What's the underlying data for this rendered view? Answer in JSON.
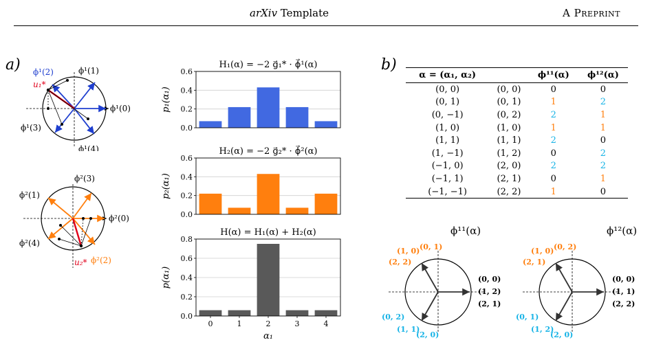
{
  "header": {
    "title_italic": "arXiv",
    "title_rest": " Template",
    "right": "A Preprint"
  },
  "panel_a_label": "a)",
  "panel_b_label": "b)",
  "colors": {
    "blue": "#4169e1",
    "blue_vec": "#1f3fcf",
    "orange": "#ff7f0e",
    "gray": "#595959",
    "red": "#e0001a",
    "cyan": "#17b3e6"
  },
  "circle1": {
    "labels": {
      "phi2": "ϕ¹(2)",
      "phi1": "ϕ¹(1)",
      "phi0": "ϕ¹(0)",
      "phi3": "ϕ¹(3)",
      "phi4": "ϕ¹(4)",
      "u": "u₁*"
    }
  },
  "circle2": {
    "labels": {
      "phi3": "ϕ²(3)",
      "phi1": "ϕ²(1)",
      "phi0": "ϕ²(0)",
      "phi4": "ϕ²(4)",
      "phi2": "ϕ²(2)",
      "u": "u₂*"
    }
  },
  "chart_data": [
    {
      "type": "bar",
      "title": "H₁(α) = −2 g⃗₁* · ϕ⃗¹(α)",
      "ylabel": "p₁(α₁)",
      "xlabel": "",
      "categories": [
        "0",
        "1",
        "2",
        "3",
        "4"
      ],
      "values": [
        0.07,
        0.22,
        0.43,
        0.22,
        0.07
      ],
      "ylim": [
        0,
        0.6
      ],
      "yticks": [
        "0.0",
        "0.2",
        "0.4",
        "0.6"
      ],
      "grid": true,
      "color": "#4169e1"
    },
    {
      "type": "bar",
      "title": "H₂(α) = −2 g⃗₂* · ϕ⃗²(α)",
      "ylabel": "p₂(α₁)",
      "xlabel": "",
      "categories": [
        "0",
        "1",
        "2",
        "3",
        "4"
      ],
      "values": [
        0.22,
        0.07,
        0.43,
        0.07,
        0.22
      ],
      "ylim": [
        0,
        0.6
      ],
      "yticks": [
        "0.0",
        "0.2",
        "0.4",
        "0.6"
      ],
      "grid": true,
      "color": "#ff7f0e"
    },
    {
      "type": "bar",
      "title": "H(α) = H₁(α) + H₂(α)",
      "ylabel": "p(α₁)",
      "xlabel": "α₁",
      "categories": [
        "0",
        "1",
        "2",
        "3",
        "4"
      ],
      "values": [
        0.06,
        0.06,
        0.75,
        0.06,
        0.06
      ],
      "ylim": [
        0,
        0.8
      ],
      "yticks": [
        "0.0",
        "0.2",
        "0.4",
        "0.6",
        "0.8"
      ],
      "grid": true,
      "color": "#595959"
    }
  ],
  "table": {
    "headers": [
      "α = (α₁, α₂)",
      "",
      "ϕ¹¹(α)",
      "ϕ¹²(α)"
    ],
    "rows": [
      [
        "(0, 0)",
        "(0, 0)",
        "0",
        "0"
      ],
      [
        "(0, 1)",
        "(0, 1)",
        "1",
        "2"
      ],
      [
        "(0, −1)",
        "(0, 2)",
        "2",
        "1"
      ],
      [
        "(1, 0)",
        "(1, 0)",
        "1",
        "1"
      ],
      [
        "(1, 1)",
        "(1, 1)",
        "2",
        "0"
      ],
      [
        "(1, −1)",
        "(1, 2)",
        "0",
        "2"
      ],
      [
        "(−1, 0)",
        "(2, 0)",
        "2",
        "2"
      ],
      [
        "(−1, 1)",
        "(2, 1)",
        "0",
        "1"
      ],
      [
        "(−1, −1)",
        "(2, 2)",
        "1",
        "0"
      ]
    ],
    "value_colors": {
      "0": "#000000",
      "1": "#ff7f0e",
      "2": "#17b3e6"
    }
  },
  "circle11": {
    "title": "ϕ¹¹(α)",
    "labels": {
      "top_a": "(1, 0)",
      "top_b": "(0, 1)",
      "top_c": "(2, 2)",
      "right_a": "(0, 0)",
      "right_b": "(1, 2)",
      "right_c": "(2, 1)",
      "bot_a": "(0, 2)",
      "bot_b": "(1, 1)",
      "bot_c": "(2, 0)"
    }
  },
  "circle12": {
    "title": "ϕ¹²(α)",
    "labels": {
      "top_a": "(1, 0)",
      "top_b": "(0, 2)",
      "top_c": "(2, 1)",
      "right_a": "(0, 0)",
      "right_b": "(1, 1)",
      "right_c": "(2, 2)",
      "bot_a": "(0, 1)",
      "bot_b": "(1, 2)",
      "bot_c": "(2, 0)"
    }
  }
}
